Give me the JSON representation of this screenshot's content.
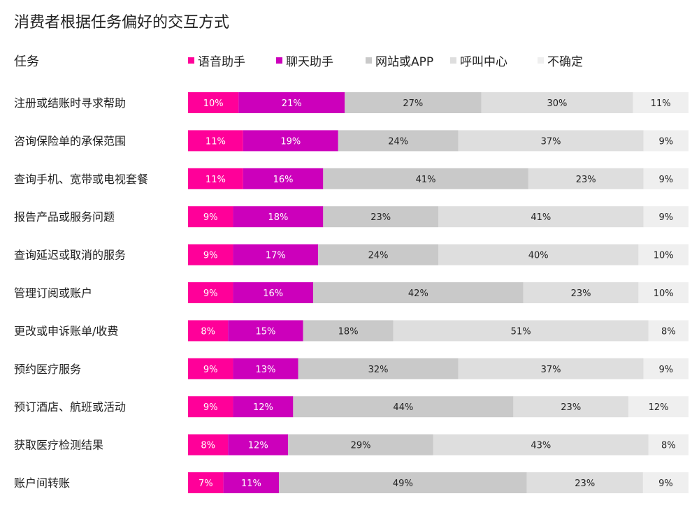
{
  "chart_data": {
    "type": "bar",
    "orientation": "horizontal",
    "stacked": true,
    "percent_stacked": true,
    "title": "消费者根据任务偏好的交互方式",
    "category_header": "任务",
    "legend_position": "top",
    "grid": false,
    "xlim": [
      0,
      100
    ],
    "categories": [
      "注册或结账时寻求帮助",
      "咨询保险单的承保范围",
      "查询手机、宽带或电视套餐",
      "报告产品或服务问题",
      "查询延迟或取消的服务",
      "管理订阅或账户",
      "更改或申诉账单/收费",
      "预约医疗服务",
      "预订酒店、航班或活动",
      "获取医疗检测结果",
      "账户间转账"
    ],
    "series": [
      {
        "name": "语音助手",
        "color": "#ff0099",
        "label_color": "#ffffff",
        "values": [
          10,
          11,
          11,
          9,
          9,
          9,
          8,
          9,
          9,
          8,
          7
        ]
      },
      {
        "name": "聊天助手",
        "color": "#cc00bb",
        "label_color": "#ffffff",
        "values": [
          21,
          19,
          16,
          18,
          17,
          16,
          15,
          13,
          12,
          12,
          11
        ]
      },
      {
        "name": "网站或APP",
        "color": "#c9c9c9",
        "label_color": "#222222",
        "values": [
          27,
          24,
          41,
          23,
          24,
          42,
          18,
          32,
          44,
          29,
          49
        ]
      },
      {
        "name": "呼叫中心",
        "color": "#dedede",
        "label_color": "#222222",
        "values": [
          30,
          37,
          23,
          41,
          40,
          23,
          51,
          37,
          23,
          43,
          23
        ]
      },
      {
        "name": "不确定",
        "color": "#efefef",
        "label_color": "#222222",
        "values": [
          11,
          9,
          9,
          9,
          10,
          10,
          8,
          9,
          12,
          8,
          9
        ]
      }
    ]
  }
}
